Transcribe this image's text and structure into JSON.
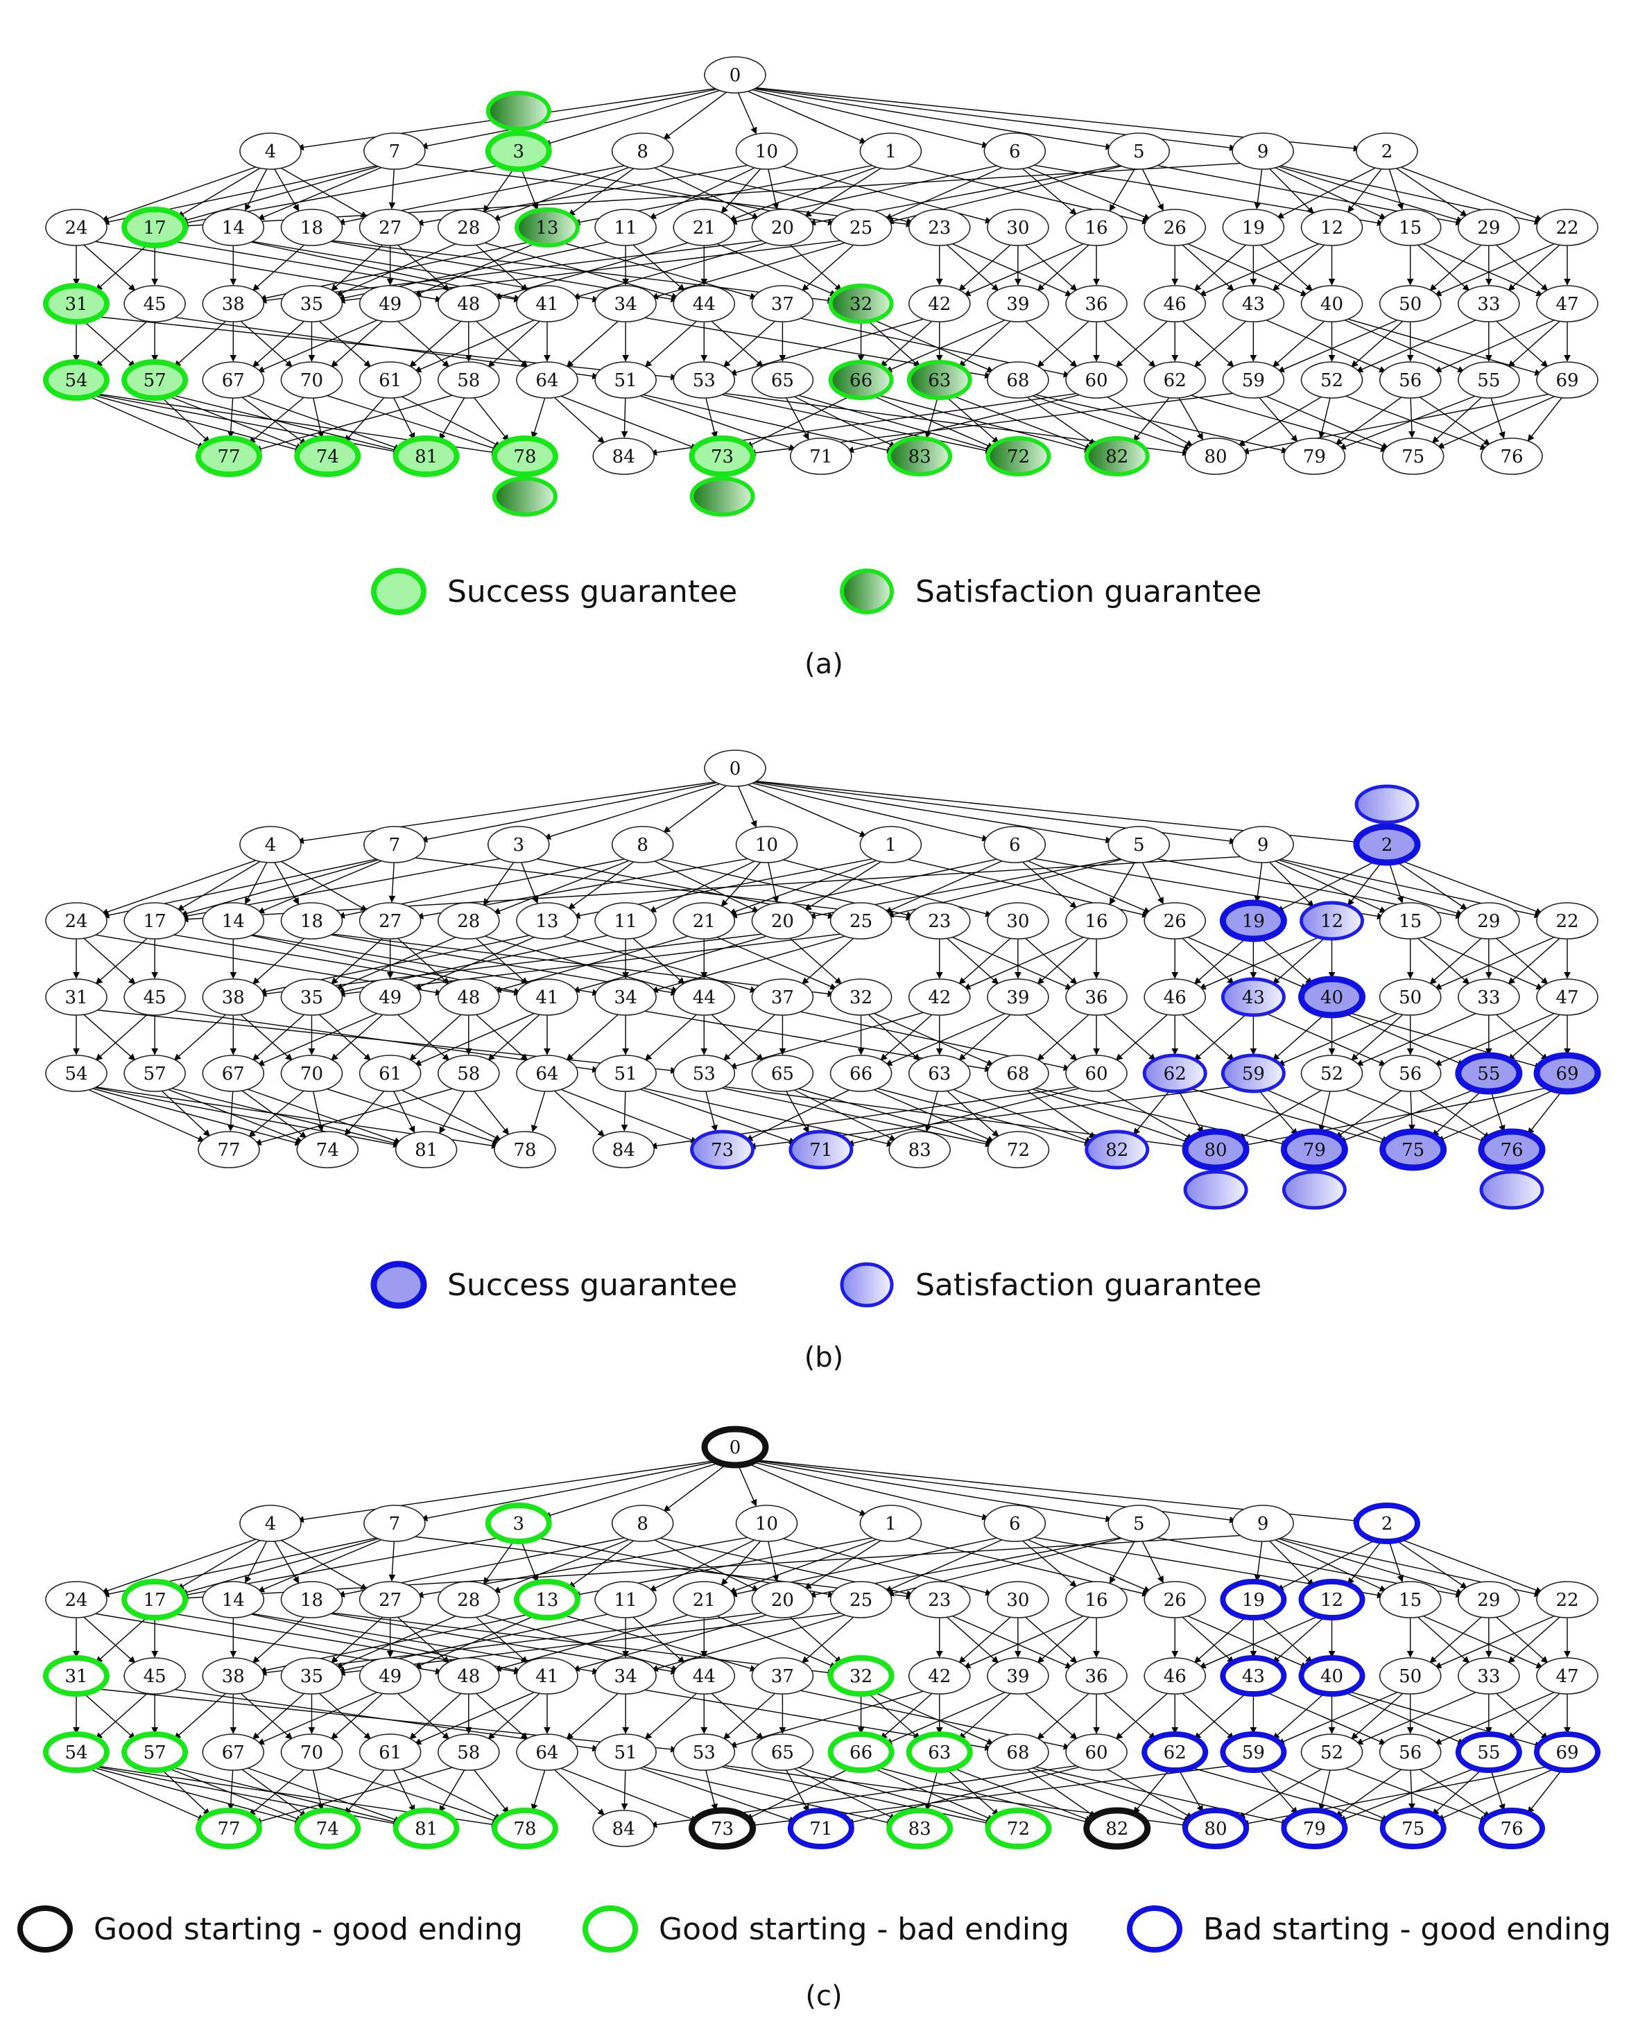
{
  "panels": [
    {
      "caption": "(a)",
      "legend": [
        {
          "label": "Success guarantee",
          "style": "green-light"
        },
        {
          "label": "Satisfaction guarantee",
          "style": "green-dark"
        }
      ],
      "styles": {
        "success": [
          17,
          31,
          54,
          57,
          77,
          74,
          81,
          78,
          73,
          3
        ],
        "satisfaction": [
          13,
          32,
          66,
          63,
          83,
          72,
          82
        ],
        "extra_above": [
          3
        ],
        "extra_below": [
          78,
          73
        ]
      }
    },
    {
      "caption": "(b)",
      "legend": [
        {
          "label": "Success guarantee",
          "style": "blue-strong"
        },
        {
          "label": "Satisfaction guarantee",
          "style": "blue-light"
        }
      ],
      "styles": {
        "success": [
          2,
          19,
          40,
          55,
          69,
          80,
          79,
          75,
          76
        ],
        "satisfaction": [
          12,
          43,
          62,
          59,
          73,
          71,
          82
        ],
        "extra_above": [
          2
        ],
        "extra_below": [
          80,
          79,
          76
        ]
      }
    },
    {
      "caption": "(c)",
      "legend": [
        {
          "label": "Good starting - good ending",
          "style": "black-ring"
        },
        {
          "label": "Good starting - bad ending",
          "style": "green-ring"
        },
        {
          "label": "Bad starting - good ending",
          "style": "blue-ring"
        }
      ],
      "styles": {
        "black": [
          0,
          73,
          82
        ],
        "green": [
          3,
          17,
          13,
          31,
          32,
          54,
          57,
          66,
          63,
          77,
          74,
          81,
          78,
          83,
          72
        ],
        "blue": [
          2,
          19,
          12,
          43,
          40,
          62,
          59,
          55,
          69,
          71,
          80,
          79,
          75,
          76
        ]
      }
    }
  ],
  "graph": {
    "layers": [
      [
        "0"
      ],
      [
        "4",
        "7",
        "3",
        "8",
        "10",
        "1",
        "6",
        "5",
        "9",
        "2"
      ],
      [
        "24",
        "17",
        "14",
        "18",
        "27",
        "28",
        "13",
        "11",
        "21",
        "20",
        "25",
        "23",
        "30",
        "16",
        "26",
        "19",
        "12",
        "15",
        "29",
        "22"
      ],
      [
        "31",
        "45",
        "38",
        "35",
        "49",
        "48",
        "41",
        "34",
        "44",
        "37",
        "32",
        "42",
        "39",
        "36",
        "46",
        "43",
        "40",
        "50",
        "33",
        "47"
      ],
      [
        "54",
        "57",
        "67",
        "70",
        "61",
        "58",
        "64",
        "51",
        "53",
        "65",
        "66",
        "63",
        "68",
        "60",
        "62",
        "59",
        "52",
        "56",
        "55",
        "69"
      ],
      [
        "77",
        "74",
        "81",
        "78",
        "84",
        "73",
        "71",
        "83",
        "72",
        "82",
        "80",
        "79",
        "75",
        "76"
      ]
    ],
    "edges": [
      [
        "0",
        "4"
      ],
      [
        "0",
        "7"
      ],
      [
        "0",
        "3"
      ],
      [
        "0",
        "8"
      ],
      [
        "0",
        "10"
      ],
      [
        "0",
        "1"
      ],
      [
        "0",
        "6"
      ],
      [
        "0",
        "5"
      ],
      [
        "0",
        "9"
      ],
      [
        "0",
        "2"
      ],
      [
        "4",
        "24"
      ],
      [
        "4",
        "17"
      ],
      [
        "4",
        "14"
      ],
      [
        "4",
        "18"
      ],
      [
        "4",
        "27"
      ],
      [
        "7",
        "24"
      ],
      [
        "7",
        "17"
      ],
      [
        "7",
        "14"
      ],
      [
        "7",
        "27"
      ],
      [
        "7",
        "23"
      ],
      [
        "3",
        "17"
      ],
      [
        "3",
        "28"
      ],
      [
        "3",
        "13"
      ],
      [
        "3",
        "25"
      ],
      [
        "8",
        "18"
      ],
      [
        "8",
        "13"
      ],
      [
        "8",
        "28"
      ],
      [
        "8",
        "20"
      ],
      [
        "8",
        "23"
      ],
      [
        "10",
        "27"
      ],
      [
        "10",
        "11"
      ],
      [
        "10",
        "21"
      ],
      [
        "10",
        "20"
      ],
      [
        "10",
        "30"
      ],
      [
        "1",
        "13"
      ],
      [
        "1",
        "21"
      ],
      [
        "1",
        "20"
      ],
      [
        "1",
        "26"
      ],
      [
        "6",
        "25"
      ],
      [
        "6",
        "21"
      ],
      [
        "6",
        "16"
      ],
      [
        "6",
        "26"
      ],
      [
        "6",
        "15"
      ],
      [
        "5",
        "20"
      ],
      [
        "5",
        "25"
      ],
      [
        "5",
        "16"
      ],
      [
        "5",
        "26"
      ],
      [
        "5",
        "29"
      ],
      [
        "9",
        "19"
      ],
      [
        "9",
        "12"
      ],
      [
        "9",
        "29"
      ],
      [
        "9",
        "15"
      ],
      [
        "9",
        "22"
      ],
      [
        "9",
        "17"
      ],
      [
        "2",
        "19"
      ],
      [
        "2",
        "12"
      ],
      [
        "2",
        "15"
      ],
      [
        "2",
        "29"
      ],
      [
        "2",
        "22"
      ],
      [
        "24",
        "31"
      ],
      [
        "24",
        "45"
      ],
      [
        "24",
        "48"
      ],
      [
        "17",
        "31"
      ],
      [
        "17",
        "45"
      ],
      [
        "17",
        "41"
      ],
      [
        "14",
        "38"
      ],
      [
        "14",
        "41"
      ],
      [
        "14",
        "34"
      ],
      [
        "18",
        "38"
      ],
      [
        "18",
        "44"
      ],
      [
        "18",
        "32"
      ],
      [
        "27",
        "35"
      ],
      [
        "27",
        "49"
      ],
      [
        "27",
        "48"
      ],
      [
        "28",
        "35"
      ],
      [
        "28",
        "41"
      ],
      [
        "28",
        "44"
      ],
      [
        "13",
        "38"
      ],
      [
        "13",
        "49"
      ],
      [
        "13",
        "37"
      ],
      [
        "11",
        "34"
      ],
      [
        "11",
        "44"
      ],
      [
        "11",
        "35"
      ],
      [
        "21",
        "48"
      ],
      [
        "21",
        "44"
      ],
      [
        "21",
        "32"
      ],
      [
        "20",
        "38"
      ],
      [
        "20",
        "41"
      ],
      [
        "20",
        "32"
      ],
      [
        "25",
        "37"
      ],
      [
        "25",
        "35"
      ],
      [
        "25",
        "34"
      ],
      [
        "23",
        "42"
      ],
      [
        "23",
        "39"
      ],
      [
        "23",
        "36"
      ],
      [
        "30",
        "39"
      ],
      [
        "30",
        "42"
      ],
      [
        "30",
        "36"
      ],
      [
        "16",
        "39"
      ],
      [
        "16",
        "36"
      ],
      [
        "16",
        "42"
      ],
      [
        "26",
        "46"
      ],
      [
        "26",
        "43"
      ],
      [
        "26",
        "40"
      ],
      [
        "19",
        "46"
      ],
      [
        "19",
        "43"
      ],
      [
        "19",
        "40"
      ],
      [
        "12",
        "46"
      ],
      [
        "12",
        "43"
      ],
      [
        "12",
        "40"
      ],
      [
        "15",
        "50"
      ],
      [
        "15",
        "33"
      ],
      [
        "15",
        "47"
      ],
      [
        "29",
        "50"
      ],
      [
        "29",
        "33"
      ],
      [
        "29",
        "47"
      ],
      [
        "22",
        "50"
      ],
      [
        "22",
        "33"
      ],
      [
        "22",
        "47"
      ],
      [
        "31",
        "54"
      ],
      [
        "31",
        "57"
      ],
      [
        "31",
        "53"
      ],
      [
        "45",
        "54"
      ],
      [
        "45",
        "57"
      ],
      [
        "45",
        "51"
      ],
      [
        "38",
        "57"
      ],
      [
        "38",
        "67"
      ],
      [
        "38",
        "70"
      ],
      [
        "35",
        "67"
      ],
      [
        "35",
        "70"
      ],
      [
        "35",
        "61"
      ],
      [
        "49",
        "67"
      ],
      [
        "49",
        "70"
      ],
      [
        "49",
        "58"
      ],
      [
        "48",
        "61"
      ],
      [
        "48",
        "58"
      ],
      [
        "48",
        "64"
      ],
      [
        "41",
        "58"
      ],
      [
        "41",
        "64"
      ],
      [
        "41",
        "61"
      ],
      [
        "34",
        "51"
      ],
      [
        "34",
        "64"
      ],
      [
        "34",
        "68"
      ],
      [
        "44",
        "51"
      ],
      [
        "44",
        "65"
      ],
      [
        "44",
        "53"
      ],
      [
        "37",
        "65"
      ],
      [
        "37",
        "53"
      ],
      [
        "37",
        "60"
      ],
      [
        "32",
        "66"
      ],
      [
        "32",
        "63"
      ],
      [
        "32",
        "68"
      ],
      [
        "42",
        "53"
      ],
      [
        "42",
        "66"
      ],
      [
        "42",
        "63"
      ],
      [
        "39",
        "60"
      ],
      [
        "39",
        "66"
      ],
      [
        "39",
        "63"
      ],
      [
        "36",
        "60"
      ],
      [
        "36",
        "68"
      ],
      [
        "36",
        "62"
      ],
      [
        "46",
        "62"
      ],
      [
        "46",
        "60"
      ],
      [
        "46",
        "59"
      ],
      [
        "43",
        "62"
      ],
      [
        "43",
        "59"
      ],
      [
        "43",
        "56"
      ],
      [
        "40",
        "59"
      ],
      [
        "40",
        "52"
      ],
      [
        "40",
        "55"
      ],
      [
        "40",
        "69"
      ],
      [
        "50",
        "52"
      ],
      [
        "50",
        "56"
      ],
      [
        "50",
        "59"
      ],
      [
        "33",
        "55"
      ],
      [
        "33",
        "69"
      ],
      [
        "33",
        "52"
      ],
      [
        "47",
        "55"
      ],
      [
        "47",
        "69"
      ],
      [
        "47",
        "56"
      ],
      [
        "54",
        "77"
      ],
      [
        "54",
        "74"
      ],
      [
        "54",
        "81"
      ],
      [
        "54",
        "78"
      ],
      [
        "57",
        "77"
      ],
      [
        "57",
        "74"
      ],
      [
        "57",
        "81"
      ],
      [
        "67",
        "77"
      ],
      [
        "67",
        "74"
      ],
      [
        "67",
        "81"
      ],
      [
        "70",
        "77"
      ],
      [
        "70",
        "74"
      ],
      [
        "70",
        "78"
      ],
      [
        "61",
        "81"
      ],
      [
        "61",
        "74"
      ],
      [
        "61",
        "78"
      ],
      [
        "58",
        "78"
      ],
      [
        "58",
        "81"
      ],
      [
        "58",
        "77"
      ],
      [
        "64",
        "84"
      ],
      [
        "64",
        "73"
      ],
      [
        "64",
        "78"
      ],
      [
        "51",
        "84"
      ],
      [
        "51",
        "71"
      ],
      [
        "51",
        "83"
      ],
      [
        "53",
        "73"
      ],
      [
        "53",
        "72"
      ],
      [
        "53",
        "80"
      ],
      [
        "65",
        "83"
      ],
      [
        "65",
        "72"
      ],
      [
        "65",
        "71"
      ],
      [
        "66",
        "72"
      ],
      [
        "66",
        "82"
      ],
      [
        "66",
        "73"
      ],
      [
        "63",
        "72"
      ],
      [
        "63",
        "83"
      ],
      [
        "63",
        "82"
      ],
      [
        "68",
        "80"
      ],
      [
        "68",
        "82"
      ],
      [
        "68",
        "79"
      ],
      [
        "60",
        "80"
      ],
      [
        "60",
        "84"
      ],
      [
        "60",
        "71"
      ],
      [
        "62",
        "80"
      ],
      [
        "62",
        "75"
      ],
      [
        "62",
        "82"
      ],
      [
        "59",
        "79"
      ],
      [
        "59",
        "75"
      ],
      [
        "59",
        "73"
      ],
      [
        "52",
        "79"
      ],
      [
        "52",
        "80"
      ],
      [
        "52",
        "76"
      ],
      [
        "56",
        "75"
      ],
      [
        "56",
        "76"
      ],
      [
        "56",
        "79"
      ],
      [
        "55",
        "75"
      ],
      [
        "55",
        "76"
      ],
      [
        "55",
        "79"
      ],
      [
        "69",
        "76"
      ],
      [
        "69",
        "75"
      ],
      [
        "69",
        "80"
      ]
    ]
  }
}
